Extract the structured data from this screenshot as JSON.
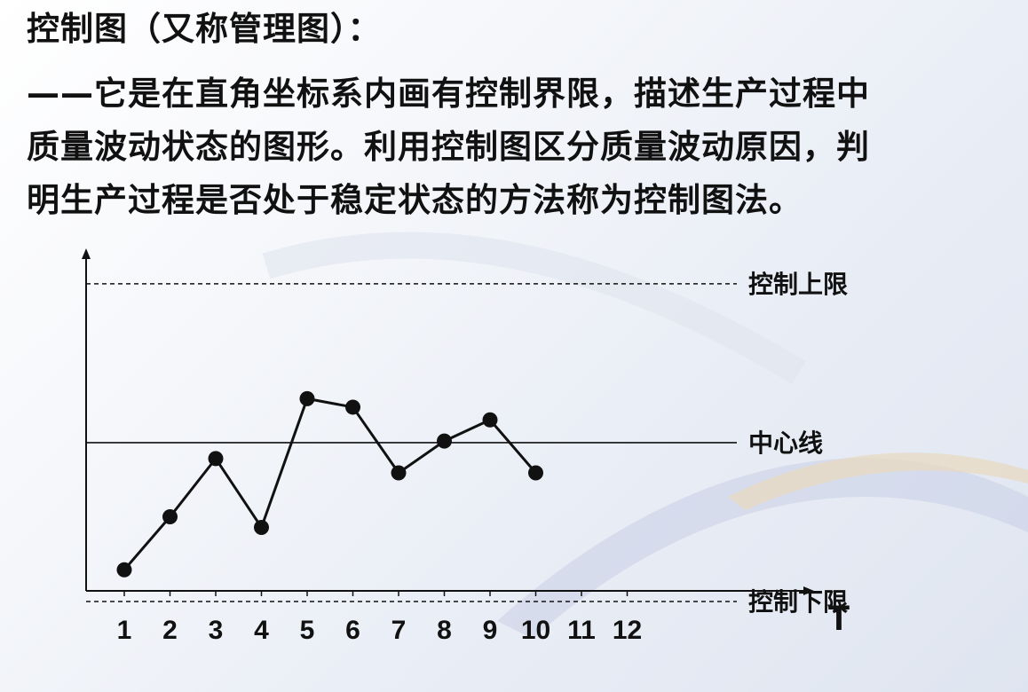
{
  "heading": "控制图（又称管理图）：",
  "paragraph_lines": [
    "——它是在直角坐标系内画有控制界限，描述生产过程中",
    "质量波动状态的图形。利用控制图区分质量波动原因，判",
    "明生产过程是否处于稳定状态的方法称为控制图法。"
  ],
  "colors": {
    "ink": "#111111",
    "background": "#eef1f7"
  },
  "chart_data": {
    "type": "line",
    "x": [
      1,
      2,
      3,
      4,
      5,
      6,
      7,
      8,
      9,
      10
    ],
    "values": [
      -2.4,
      -1.4,
      -0.3,
      -1.6,
      0.83,
      0.67,
      -0.57,
      0.03,
      0.43,
      -0.57
    ],
    "ticks": [
      "1",
      "2",
      "3",
      "4",
      "5",
      "6",
      "7",
      "8",
      "9",
      "10",
      "11",
      "12"
    ],
    "xlabel": "T",
    "ylim": [
      -3.2,
      3.5
    ],
    "grid": false,
    "reference_lines": [
      {
        "label": "控制上限",
        "value": 3,
        "style": "dashed"
      },
      {
        "label": "中心线",
        "value": 0,
        "style": "solid"
      },
      {
        "label": "控制下限",
        "value": -3,
        "style": "dashed"
      }
    ]
  }
}
